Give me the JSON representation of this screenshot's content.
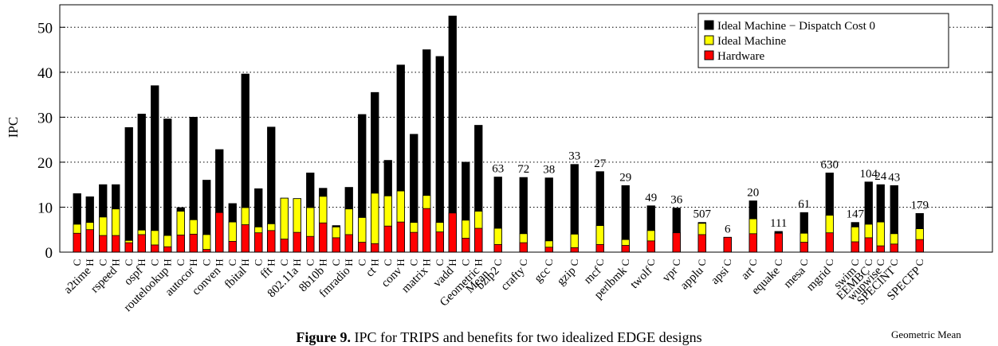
{
  "caption": {
    "label": "Figure 9.",
    "text": " IPC for TRIPS and benefits for two idealized EDGE designs"
  },
  "group_label": "Geometric Mean",
  "chart_data": {
    "type": "bar",
    "stacked": "overlay",
    "ylabel": "IPC",
    "ylim": [
      0,
      55
    ],
    "yticks": [
      0,
      10,
      20,
      30,
      40,
      50
    ],
    "grid": "horizontal dotted",
    "legend_position": "top-right",
    "colors": {
      "Ideal Machine − Dispatch Cost 0": "#000000",
      "Ideal Machine": "#ffff00",
      "Hardware": "#ff0000"
    },
    "series_names": [
      "Ideal Machine − Dispatch Cost 0",
      "Ideal Machine",
      "Hardware"
    ],
    "groups": [
      {
        "name": "a2time",
        "bars": [
          {
            "config": "C",
            "values": [
              13.0,
              6.2,
              4.2
            ]
          },
          {
            "config": "H",
            "values": [
              12.3,
              6.6,
              5.0
            ]
          }
        ]
      },
      {
        "name": "rspeed",
        "bars": [
          {
            "config": "C",
            "values": [
              15.0,
              7.8,
              3.7
            ]
          },
          {
            "config": "H",
            "values": [
              15.0,
              9.6,
              3.7
            ]
          }
        ]
      },
      {
        "name": "ospf",
        "bars": [
          {
            "config": "C",
            "values": [
              27.7,
              2.6,
              2.1
            ]
          },
          {
            "config": "H",
            "values": [
              30.7,
              4.9,
              3.9
            ]
          }
        ]
      },
      {
        "name": "routelookup",
        "bars": [
          {
            "config": "C",
            "values": [
              37.0,
              4.8,
              1.6
            ]
          },
          {
            "config": "H",
            "values": [
              29.6,
              3.7,
              1.2
            ]
          }
        ]
      },
      {
        "name": "autocor",
        "bars": [
          {
            "config": "C",
            "values": [
              9.9,
              9.1,
              3.8
            ]
          },
          {
            "config": "H",
            "values": [
              30.0,
              7.2,
              4.0
            ]
          }
        ]
      },
      {
        "name": "conven",
        "bars": [
          {
            "config": "C",
            "values": [
              16.0,
              3.9,
              0.6
            ]
          },
          {
            "config": "H",
            "values": [
              22.8,
              8.8,
              8.8
            ]
          }
        ]
      },
      {
        "name": "fbital",
        "bars": [
          {
            "config": "C",
            "values": [
              10.8,
              6.7,
              2.4
            ]
          },
          {
            "config": "H",
            "values": [
              39.6,
              9.9,
              6.1
            ]
          }
        ]
      },
      {
        "name": "fft",
        "bars": [
          {
            "config": "C",
            "values": [
              14.1,
              5.6,
              4.3
            ]
          },
          {
            "config": "H",
            "values": [
              27.8,
              6.3,
              4.8
            ]
          }
        ]
      },
      {
        "name": "802.11a",
        "bars": [
          {
            "config": "C",
            "values": [
              12.0,
              12.0,
              2.9
            ]
          },
          {
            "config": "H",
            "values": [
              11.9,
              11.9,
              4.4
            ]
          }
        ]
      },
      {
        "name": "8b10b",
        "bars": [
          {
            "config": "C",
            "values": [
              17.6,
              9.9,
              3.5
            ]
          },
          {
            "config": "H",
            "values": [
              14.2,
              12.4,
              6.5
            ]
          }
        ]
      },
      {
        "name": "fmradio",
        "bars": [
          {
            "config": "C",
            "values": [
              5.9,
              5.6,
              3.2
            ]
          },
          {
            "config": "H",
            "values": [
              14.4,
              9.6,
              3.9
            ]
          }
        ]
      },
      {
        "name": "ct",
        "bars": [
          {
            "config": "C",
            "values": [
              30.6,
              7.7,
              2.2
            ]
          },
          {
            "config": "H",
            "values": [
              35.5,
              13.1,
              1.9
            ]
          }
        ]
      },
      {
        "name": "conv",
        "bars": [
          {
            "config": "C",
            "values": [
              20.4,
              12.5,
              5.8
            ]
          },
          {
            "config": "H",
            "values": [
              41.6,
              13.6,
              6.7
            ]
          }
        ]
      },
      {
        "name": "matrix",
        "bars": [
          {
            "config": "C",
            "values": [
              26.2,
              6.6,
              4.4
            ]
          },
          {
            "config": "H",
            "values": [
              45.0,
              12.6,
              9.7
            ]
          }
        ]
      },
      {
        "name": "vadd",
        "bars": [
          {
            "config": "C",
            "values": [
              43.5,
              6.6,
              4.5
            ]
          },
          {
            "config": "H",
            "values": [
              52.5,
              8.7,
              8.7
            ]
          }
        ]
      },
      {
        "name": "Geometric Mean",
        "bars": [
          {
            "config": "C",
            "values": [
              20.0,
              7.1,
              3.1
            ]
          },
          {
            "config": "H",
            "values": [
              28.2,
              9.1,
              5.3
            ]
          }
        ]
      },
      {
        "name": "bzip2",
        "bars": [
          {
            "config": "C",
            "values": [
              16.7,
              5.3,
              1.7
            ],
            "annotation": "63"
          }
        ]
      },
      {
        "name": "crafty",
        "bars": [
          {
            "config": "C",
            "values": [
              16.6,
              4.1,
              2.1
            ],
            "annotation": "72"
          }
        ]
      },
      {
        "name": "gcc",
        "bars": [
          {
            "config": "C",
            "values": [
              16.5,
              2.5,
              1.1
            ],
            "annotation": "38"
          }
        ]
      },
      {
        "name": "gzip",
        "bars": [
          {
            "config": "C",
            "values": [
              19.5,
              4.0,
              1.0
            ],
            "annotation": "33"
          }
        ]
      },
      {
        "name": "mcf",
        "bars": [
          {
            "config": "C",
            "values": [
              17.9,
              5.9,
              1.7
            ],
            "annotation": "27"
          }
        ]
      },
      {
        "name": "perlbmk",
        "bars": [
          {
            "config": "C",
            "values": [
              14.8,
              2.8,
              1.5
            ],
            "annotation": "29"
          }
        ]
      },
      {
        "name": "twolf",
        "bars": [
          {
            "config": "C",
            "values": [
              10.3,
              4.8,
              2.5
            ],
            "annotation": "49"
          }
        ]
      },
      {
        "name": "vpr",
        "bars": [
          {
            "config": "C",
            "values": [
              9.8,
              4.3,
              4.3
            ],
            "annotation": "36"
          }
        ]
      },
      {
        "name": "applu",
        "bars": [
          {
            "config": "C",
            "values": [
              6.6,
              6.4,
              3.9
            ],
            "annotation": "507"
          }
        ]
      },
      {
        "name": "apsi",
        "bars": [
          {
            "config": "C",
            "values": [
              3.3,
              3.3,
              3.3
            ],
            "annotation": "6"
          }
        ]
      },
      {
        "name": "art",
        "bars": [
          {
            "config": "C",
            "values": [
              11.4,
              7.4,
              4.1
            ],
            "annotation": "20"
          }
        ]
      },
      {
        "name": "equake",
        "bars": [
          {
            "config": "C",
            "values": [
              4.6,
              4.2,
              4.2
            ],
            "annotation": "111"
          }
        ]
      },
      {
        "name": "mesa",
        "bars": [
          {
            "config": "C",
            "values": [
              8.8,
              4.2,
              2.2
            ],
            "annotation": "61"
          }
        ]
      },
      {
        "name": "mgrid",
        "bars": [
          {
            "config": "C",
            "values": [
              17.6,
              8.2,
              4.3
            ],
            "annotation": "630"
          }
        ]
      },
      {
        "name": "swim",
        "bars": [
          {
            "config": "C",
            "values": [
              6.6,
              5.6,
              2.3
            ],
            "annotation": "147"
          }
        ]
      },
      {
        "name": "wupwise",
        "bars": [
          {
            "config": "C",
            "values": [
              15.0,
              6.7,
              1.4
            ],
            "annotation": "24"
          }
        ]
      },
      {
        "name": "EEMBC",
        "bars": [
          {
            "config": "C",
            "values": [
              15.6,
              6.2,
              3.2
            ],
            "annotation": "104"
          }
        ]
      },
      {
        "name": "SPECINT",
        "bars": [
          {
            "config": "C",
            "values": [
              14.8,
              4.1,
              1.8
            ],
            "annotation": "43"
          }
        ]
      },
      {
        "name": "SPECFP",
        "bars": [
          {
            "config": "C",
            "values": [
              8.6,
              5.2,
              2.8
            ],
            "annotation": "179"
          }
        ]
      }
    ]
  }
}
